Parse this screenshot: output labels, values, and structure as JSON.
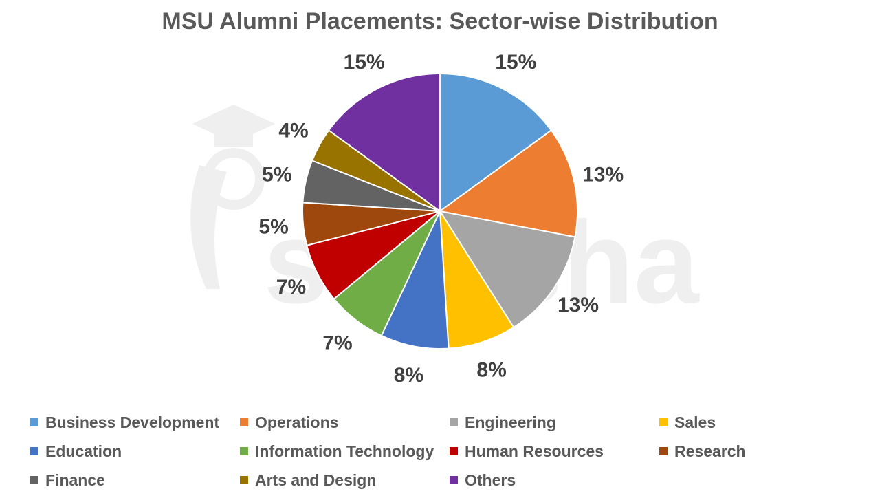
{
  "chart_data": {
    "type": "pie",
    "title": "MSU Alumni Placements: Sector-wise Distribution",
    "categories": [
      "Business Development",
      "Operations",
      "Engineering",
      "Sales",
      "Education",
      "Information Technology",
      "Human Resources",
      "Research",
      "Finance",
      "Arts and Design",
      "Others"
    ],
    "values": [
      15,
      13,
      13,
      8,
      8,
      7,
      7,
      5,
      5,
      4,
      15
    ],
    "data_labels": [
      "15%",
      "13%",
      "13%",
      "8%",
      "8%",
      "7%",
      "7%",
      "5%",
      "5%",
      "4%",
      "15%"
    ],
    "colors": [
      "#5B9BD5",
      "#ED7D31",
      "#A5A5A5",
      "#FFC000",
      "#4472C4",
      "#70AD47",
      "#C00000",
      "#9E480E",
      "#636363",
      "#997300",
      "#7030A0"
    ],
    "legend_position": "bottom",
    "start_angle": "12 o'clock, clockwise"
  },
  "watermark": {
    "text": "shiksha",
    "icon": "graduation-cap-icon"
  }
}
